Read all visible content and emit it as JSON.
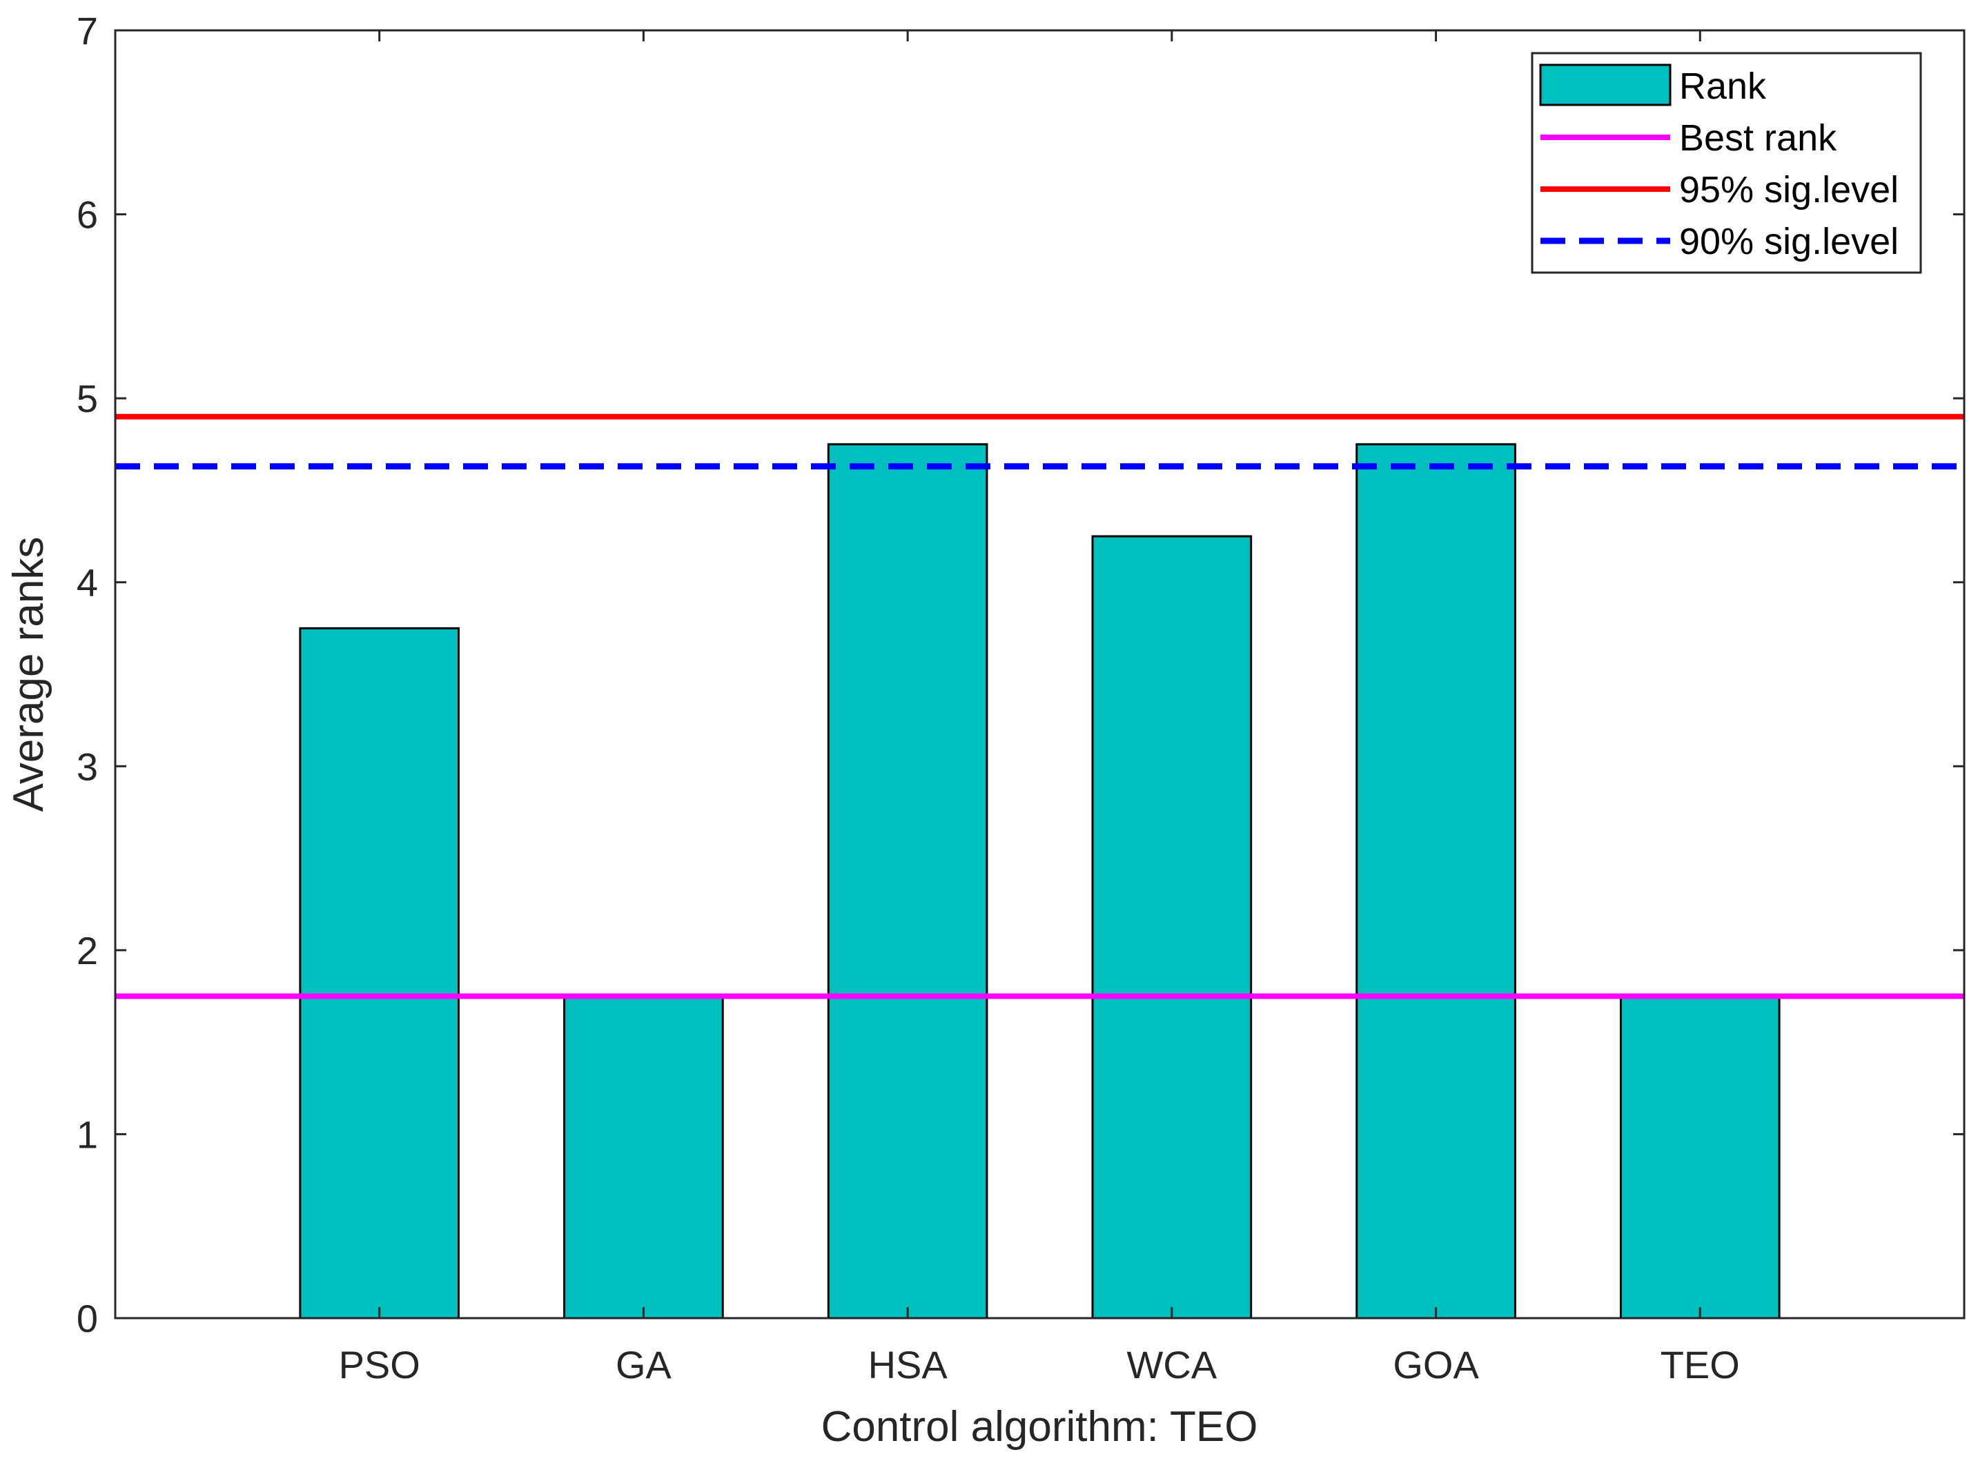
{
  "chart_data": {
    "type": "bar",
    "title": "",
    "xlabel": "Control algorithm: TEO",
    "ylabel": "Average ranks",
    "categories": [
      "PSO",
      "GA",
      "HSA",
      "WCA",
      "GOA",
      "TEO"
    ],
    "series": [
      {
        "name": "Rank",
        "values": [
          3.75,
          1.75,
          4.75,
          4.25,
          4.75,
          1.75
        ],
        "color": "#00BFBF"
      }
    ],
    "reference_lines": [
      {
        "name": "Best rank",
        "value": 1.75,
        "color": "#FF00FF",
        "style": "solid"
      },
      {
        "name": "95% sig.level",
        "value": 4.9,
        "color": "#FF0000",
        "style": "solid"
      },
      {
        "name": "90% sig.level",
        "value": 4.63,
        "color": "#0000FF",
        "style": "dashed"
      }
    ],
    "ylim": [
      0,
      7
    ],
    "yticks": [
      0,
      1,
      2,
      3,
      4,
      5,
      6,
      7
    ],
    "xlim": [
      0,
      7
    ],
    "grid": false,
    "legend": {
      "location": "top-right",
      "entries": [
        "Rank",
        "Best rank",
        "95% sig.level",
        "90% sig.level"
      ]
    }
  }
}
